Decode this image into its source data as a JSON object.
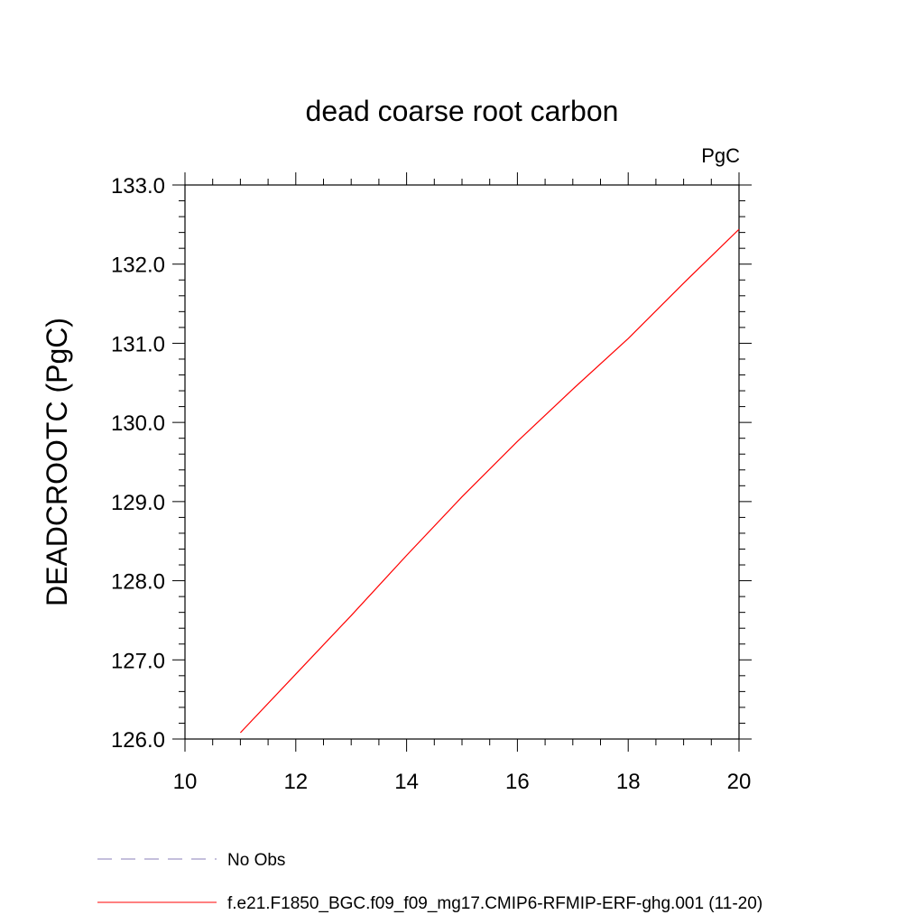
{
  "chart_data": {
    "type": "line",
    "title": "dead coarse root carbon",
    "units_label": "PgC",
    "xlabel": "",
    "ylabel": "DEADCROOTC  (PgC)",
    "xlim": [
      10,
      20
    ],
    "ylim": [
      126.0,
      133.0
    ],
    "x_ticks": [
      10,
      12,
      14,
      16,
      18,
      20
    ],
    "x_tick_labels": [
      "10",
      "12",
      "14",
      "16",
      "18",
      "20"
    ],
    "y_ticks": [
      126.0,
      127.0,
      128.0,
      129.0,
      130.0,
      131.0,
      132.0,
      133.0
    ],
    "y_tick_labels": [
      "126.0",
      "127.0",
      "128.0",
      "129.0",
      "130.0",
      "131.0",
      "132.0",
      "133.0"
    ],
    "grid": false,
    "legend_position": "bottom",
    "series": [
      {
        "name": "f.e21.F1850_BGC.f09_f09_mg17.CMIP6-RFMIP-ERF-ghg.001 (11-20)",
        "color": "#ff0000",
        "dash": "solid",
        "x": [
          11,
          12,
          13,
          14,
          15,
          16,
          17,
          18,
          19,
          20
        ],
        "y": [
          126.08,
          126.82,
          127.56,
          128.32,
          129.06,
          129.76,
          130.42,
          131.06,
          131.76,
          132.44
        ]
      }
    ],
    "legend": [
      {
        "label": "No Obs",
        "color": "#8a7fb8",
        "dash": "dashed"
      },
      {
        "label": "f.e21.F1850_BGC.f09_f09_mg17.CMIP6-RFMIP-ERF-ghg.001 (11-20)",
        "color": "#ff0000",
        "dash": "solid"
      }
    ]
  }
}
